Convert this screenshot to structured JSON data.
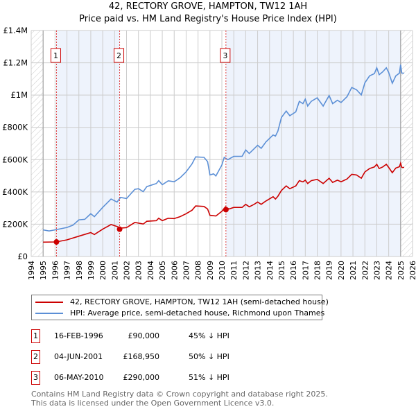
{
  "title": "42, RECTORY GROVE, HAMPTON, TW12 1AH",
  "subtitle": "Price paid vs. HM Land Registry's House Price Index (HPI)",
  "chart_data": {
    "type": "line",
    "title": "42, RECTORY GROVE, HAMPTON, TW12 1AH — Price paid vs. HM Land Registry's House Price Index (HPI)",
    "xlim": [
      1994,
      2026
    ],
    "ylim": [
      0,
      1400000
    ],
    "x_ticks": [
      "1994",
      "1995",
      "1996",
      "1997",
      "1998",
      "1999",
      "2000",
      "2001",
      "2002",
      "2003",
      "2004",
      "2005",
      "2006",
      "2007",
      "2008",
      "2009",
      "2010",
      "2011",
      "2012",
      "2013",
      "2014",
      "2015",
      "2016",
      "2017",
      "2018",
      "2019",
      "2020",
      "2021",
      "2022",
      "2023",
      "2024",
      "2025",
      "2026"
    ],
    "y_ticks": [
      {
        "v": 0,
        "label": "£0"
      },
      {
        "v": 200000,
        "label": "£200K"
      },
      {
        "v": 400000,
        "label": "£400K"
      },
      {
        "v": 600000,
        "label": "£600K"
      },
      {
        "v": 800000,
        "label": "£800K"
      },
      {
        "v": 1000000,
        "label": "£1M"
      },
      {
        "v": 1200000,
        "label": "£1.2M"
      },
      {
        "v": 1400000,
        "label": "£1.4M"
      }
    ],
    "grid": true,
    "series": [
      {
        "name": "42, RECTORY GROVE, HAMPTON, TW12 1AH (semi-detached house)",
        "color": "#cc0000",
        "x": [
          1995,
          1996.1,
          1997,
          1998,
          1999,
          1999.3,
          2000,
          2000.7,
          2001.2,
          2001.5,
          2002,
          2002.7,
          2003.4,
          2003.7,
          2004.5,
          2004.7,
          2005,
          2005.5,
          2006,
          2006.5,
          2007,
          2007.5,
          2007.8,
          2008.5,
          2008.8,
          2009,
          2009.5,
          2010,
          2010.3,
          2010.6,
          2011,
          2011.7,
          2012,
          2012.3,
          2012.7,
          2013,
          2013.3,
          2013.7,
          2014.3,
          2014.5,
          2014.7,
          2015,
          2015.4,
          2015.7,
          2016.2,
          2016.5,
          2016.8,
          2017,
          2017.2,
          2017.5,
          2018,
          2018.5,
          2019,
          2019.3,
          2019.7,
          2020,
          2020.5,
          2020.9,
          2021.3,
          2021.7,
          2022,
          2022.4,
          2022.8,
          2023,
          2023.2,
          2023.5,
          2023.8,
          2024,
          2024.3,
          2024.6,
          2024.9,
          2025,
          2025.1,
          2025.3
        ],
        "y": [
          89000,
          90000,
          103000,
          126000,
          148000,
          136000,
          169000,
          198000,
          186000,
          176000,
          179000,
          211000,
          201000,
          218000,
          222000,
          237000,
          222000,
          237000,
          235000,
          247000,
          265000,
          287000,
          313000,
          310000,
          294000,
          255000,
          251000,
          280000,
          308000,
          294000,
          304000,
          304000,
          323000,
          308000,
          323000,
          337000,
          323000,
          344000,
          370000,
          356000,
          373000,
          409000,
          437000,
          420000,
          437000,
          470000,
          462000,
          473000,
          452000,
          470000,
          478000,
          452000,
          485000,
          459000,
          473000,
          463000,
          480000,
          509000,
          505000,
          485000,
          524000,
          545000,
          555000,
          571000,
          545000,
          555000,
          571000,
          552000,
          519000,
          548000,
          556000,
          578000,
          552000,
          552000
        ]
      },
      {
        "name": "HPI: Average price, semi-detached house, Richmond upon Thames",
        "color": "#5b8fd6",
        "x": [
          1995,
          1995.5,
          1996,
          1997,
          1997.5,
          1998,
          1998.5,
          1999,
          1999.3,
          2000,
          2000.7,
          2001.2,
          2001.5,
          2002,
          2002.7,
          2003,
          2003.4,
          2003.7,
          2004.5,
          2004.7,
          2005,
          2005.5,
          2006,
          2006.5,
          2007,
          2007.5,
          2007.8,
          2008.5,
          2008.8,
          2009,
          2009.3,
          2009.5,
          2010,
          2010.2,
          2010.5,
          2011,
          2011.7,
          2012,
          2012.3,
          2012.7,
          2013,
          2013.3,
          2013.7,
          2014.3,
          2014.5,
          2014.7,
          2015,
          2015.4,
          2015.7,
          2016.2,
          2016.5,
          2016.8,
          2017,
          2017.2,
          2017.5,
          2018,
          2018.5,
          2019,
          2019.3,
          2019.7,
          2020,
          2020.5,
          2020.9,
          2021.3,
          2021.7,
          2022,
          2022.4,
          2022.8,
          2023,
          2023.2,
          2023.5,
          2023.8,
          2024,
          2024.3,
          2024.6,
          2024.9,
          2025,
          2025.1,
          2025.3
        ],
        "y": [
          165000,
          158000,
          165000,
          180000,
          194000,
          227000,
          230000,
          265000,
          247000,
          304000,
          356000,
          337000,
          366000,
          359000,
          416000,
          420000,
          402000,
          433000,
          452000,
          470000,
          445000,
          469000,
          463000,
          488000,
          524000,
          574000,
          617000,
          614000,
          588000,
          505000,
          512000,
          499000,
          567000,
          614000,
          600000,
          620000,
          621000,
          660000,
          638000,
          667000,
          689000,
          670000,
          710000,
          753000,
          746000,
          777000,
          861000,
          901000,
          872000,
          896000,
          961000,
          947000,
          975000,
          932000,
          961000,
          983000,
          932000,
          997000,
          947000,
          968000,
          954000,
          990000,
          1047000,
          1033000,
          1001000,
          1076000,
          1119000,
          1133000,
          1169000,
          1126000,
          1144000,
          1169000,
          1140000,
          1073000,
          1119000,
          1136000,
          1188000,
          1136000,
          1136000
        ]
      }
    ],
    "sales": [
      {
        "id": "1",
        "x": 1996.12,
        "date": "16-FEB-1996",
        "price_value": 90000,
        "price": "£90,000",
        "hpi": "45% ↓ HPI"
      },
      {
        "id": "2",
        "x": 2001.42,
        "date": "04-JUN-2001",
        "price_value": 168950,
        "price": "£168,950",
        "hpi": "50% ↓ HPI"
      },
      {
        "id": "3",
        "x": 2010.34,
        "date": "06-MAY-2010",
        "price_value": 290000,
        "price": "£290,000",
        "hpi": "51% ↓ HPI"
      }
    ],
    "legend_placement": "below"
  },
  "footer": {
    "line1": "Contains HM Land Registry data © Crown copyright and database right 2025.",
    "line2": "This data is licensed under the Open Government Licence v3.0."
  }
}
